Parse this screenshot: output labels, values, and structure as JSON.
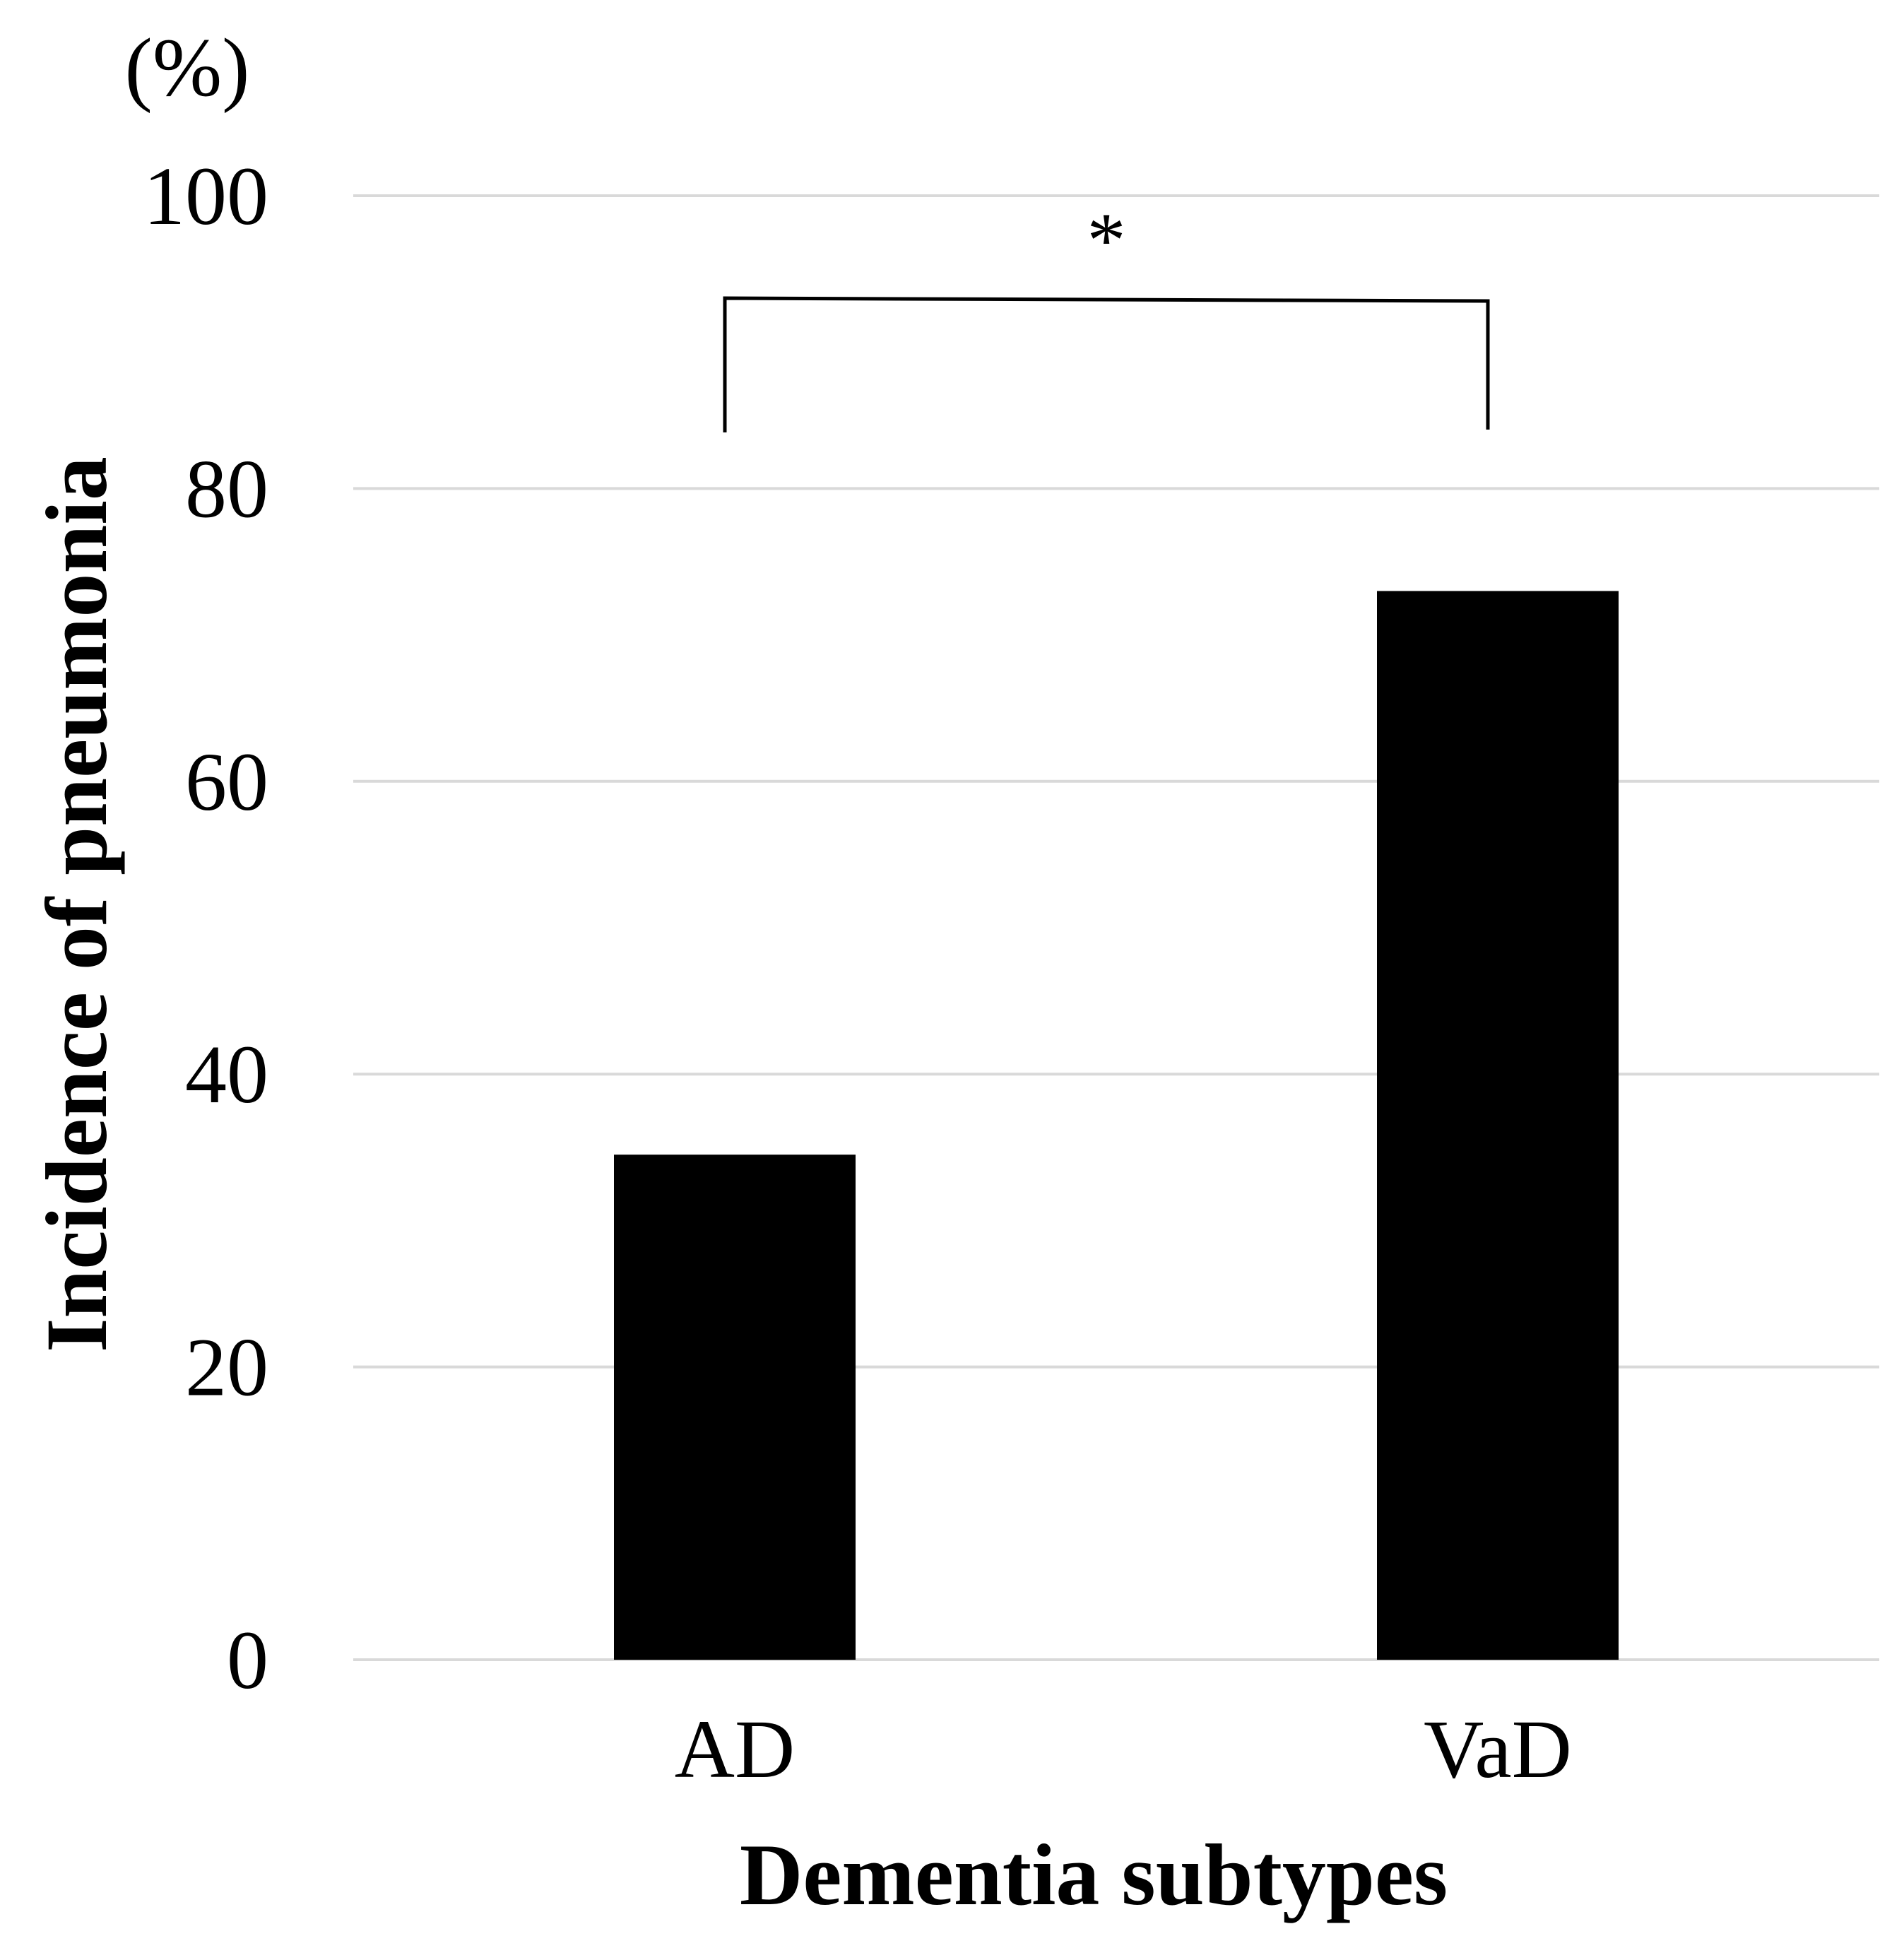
{
  "chart_data": {
    "type": "bar",
    "title": "",
    "unit_label": "(%)",
    "xlabel": "Dementia subtypes",
    "ylabel": "Incidence of pneumonia",
    "categories": [
      "AD",
      "VaD"
    ],
    "values": [
      34.5,
      73
    ],
    "ylim": [
      0,
      100
    ],
    "yticks": [
      0,
      20,
      40,
      60,
      80,
      100
    ],
    "grid": true,
    "legend": "none",
    "bar_color": "#000000",
    "significance": {
      "between": [
        "AD",
        "VaD"
      ],
      "label": "*",
      "level": 93
    }
  }
}
